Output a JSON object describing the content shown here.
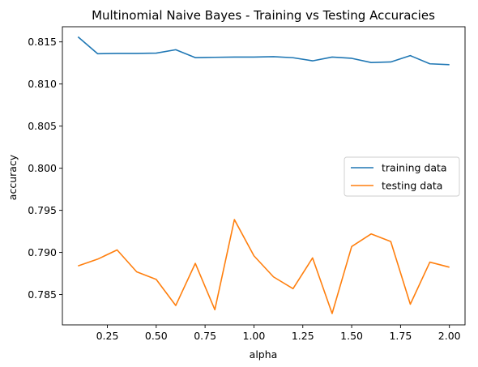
{
  "chart_data": {
    "type": "line",
    "title": "Multinomial Naive Bayes - Training vs Testing Accuracies",
    "xlabel": "alpha",
    "ylabel": "accuracy",
    "xlim": [
      0.02,
      2.08
    ],
    "ylim": [
      0.7814,
      0.8168
    ],
    "xticks": [
      0.25,
      0.5,
      0.75,
      1.0,
      1.25,
      1.5,
      1.75,
      2.0
    ],
    "xtick_labels": [
      "0.25",
      "0.50",
      "0.75",
      "1.00",
      "1.25",
      "1.50",
      "1.75",
      "2.00"
    ],
    "yticks": [
      0.785,
      0.79,
      0.795,
      0.8,
      0.805,
      0.81,
      0.815
    ],
    "ytick_labels": [
      "0.785",
      "0.790",
      "0.795",
      "0.800",
      "0.805",
      "0.810",
      "0.815"
    ],
    "grid": false,
    "legend_position": "center-right",
    "x": [
      0.1,
      0.2,
      0.3,
      0.4,
      0.5,
      0.6,
      0.7,
      0.8,
      0.9,
      1.0,
      1.1,
      1.2,
      1.3,
      1.4,
      1.5,
      1.6,
      1.7,
      1.8,
      1.9,
      2.0
    ],
    "series": [
      {
        "name": "training data",
        "color": "#1f77b4",
        "values": [
          0.8156,
          0.8136,
          0.81363,
          0.81363,
          0.81367,
          0.81407,
          0.81313,
          0.81317,
          0.8132,
          0.8132,
          0.81325,
          0.81312,
          0.81275,
          0.8132,
          0.81305,
          0.81255,
          0.81262,
          0.81337,
          0.8124,
          0.8123
        ]
      },
      {
        "name": "testing data",
        "color": "#ff7f0e",
        "values": [
          0.7884,
          0.7892,
          0.7903,
          0.7877,
          0.7868,
          0.7837,
          0.7887,
          0.7832,
          0.7939,
          0.7896,
          0.7871,
          0.7857,
          0.78935,
          0.78275,
          0.7907,
          0.7922,
          0.7913,
          0.78385,
          0.78885,
          0.78825
        ]
      }
    ]
  }
}
